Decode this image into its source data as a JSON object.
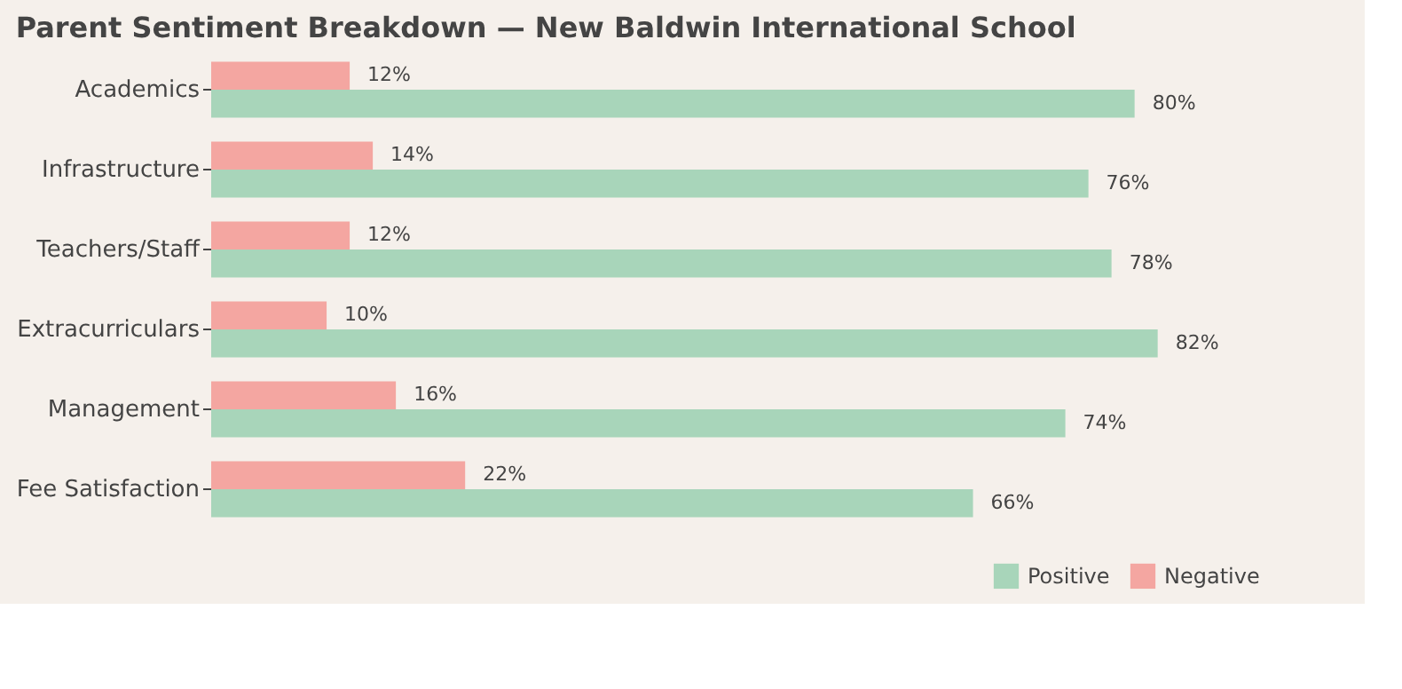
{
  "chart_data": {
    "type": "bar",
    "orientation": "horizontal",
    "title": "Parent Sentiment Breakdown — New Baldwin International School",
    "categories": [
      "Academics",
      "Infrastructure",
      "Teachers/Staff",
      "Extracurriculars",
      "Management",
      "Fee Satisfaction"
    ],
    "series": [
      {
        "name": "Positive",
        "color": "#a8d5ba",
        "values": [
          80,
          76,
          78,
          82,
          74,
          66
        ],
        "value_labels": [
          "80%",
          "76%",
          "78%",
          "82%",
          "74%",
          "66%"
        ]
      },
      {
        "name": "Negative",
        "color": "#f4a6a1",
        "values": [
          12,
          14,
          12,
          10,
          16,
          22
        ],
        "value_labels": [
          "12%",
          "14%",
          "12%",
          "10%",
          "16%",
          "22%"
        ]
      }
    ],
    "legend": "bottom right",
    "grid": false
  }
}
